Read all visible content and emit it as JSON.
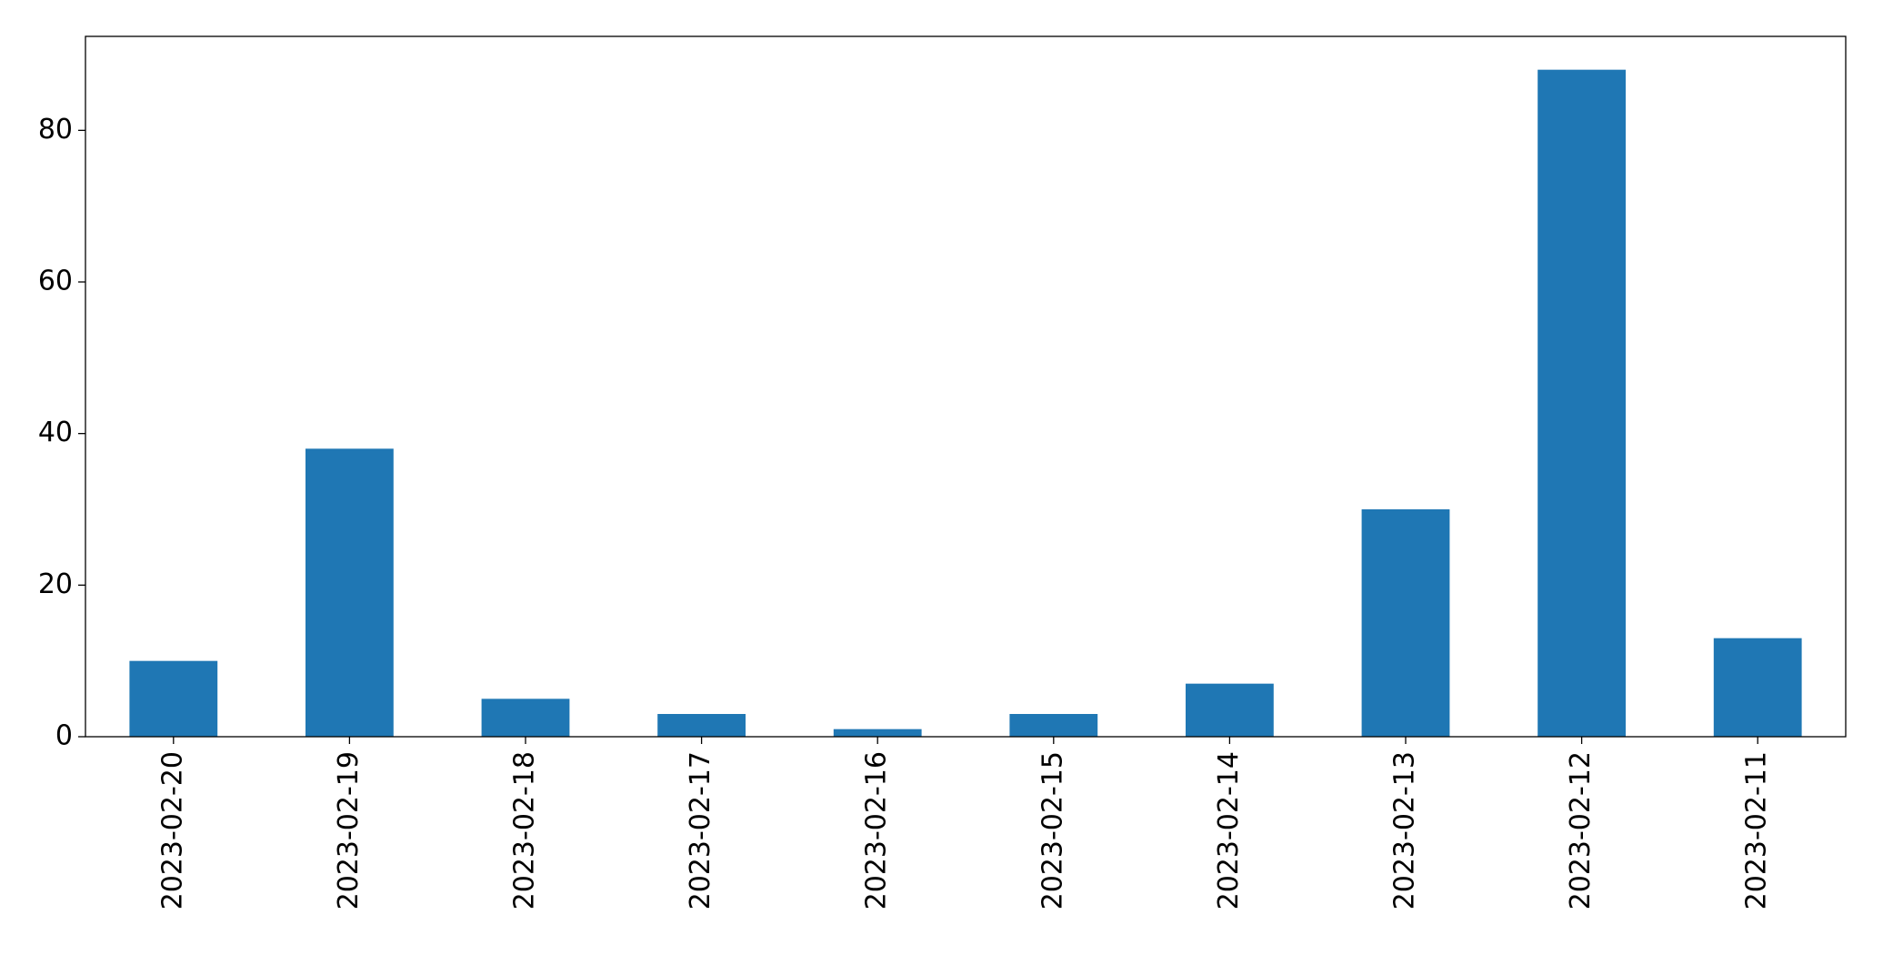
{
  "chart_data": {
    "type": "bar",
    "categories": [
      "2023-02-20",
      "2023-02-19",
      "2023-02-18",
      "2023-02-17",
      "2023-02-16",
      "2023-02-15",
      "2023-02-14",
      "2023-02-13",
      "2023-02-12",
      "2023-02-11"
    ],
    "values": [
      10,
      38,
      5,
      3,
      1,
      3,
      7,
      30,
      88,
      13
    ],
    "color": "#1f77b4",
    "ylim": [
      0,
      92.4
    ],
    "yticks": [
      0,
      20,
      40,
      60,
      80
    ],
    "grid": false
  }
}
